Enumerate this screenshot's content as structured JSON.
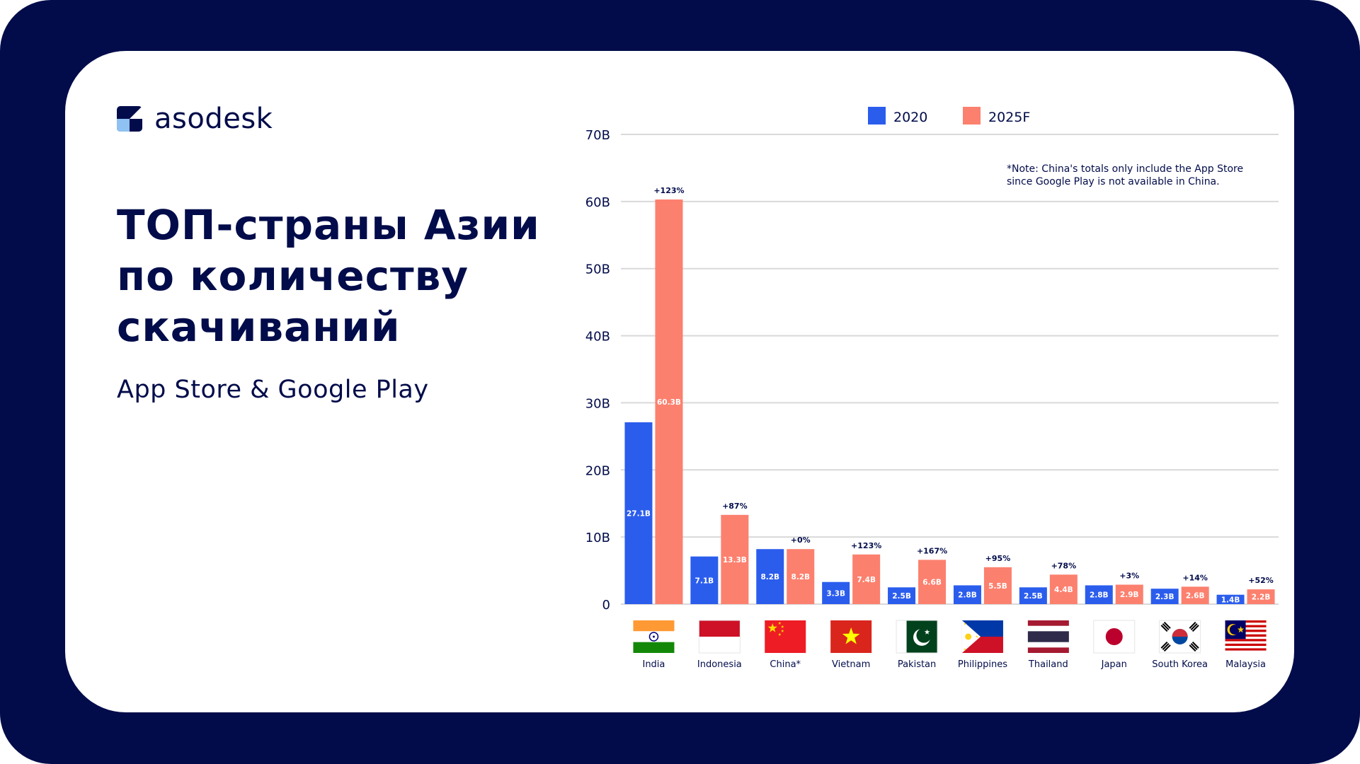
{
  "brand": {
    "name": "asodesk",
    "logo_icon": "asodesk-logo-icon"
  },
  "headline": {
    "line1": "ТОП-страны Азии",
    "line2": "по количеству",
    "line3": "скачиваний"
  },
  "subheadline": "App Store & Google Play",
  "colors": {
    "navy": "#020c4a",
    "series_2020": "#2b5ded",
    "series_2025": "#fc806e",
    "grid": "#d9d9d9"
  },
  "chart_data": {
    "type": "bar",
    "categories": [
      "India",
      "Indonesia",
      "China*",
      "Vietnam",
      "Pakistan",
      "Philippines",
      "Thailand",
      "Japan",
      "South Korea",
      "Malaysia"
    ],
    "flags": [
      "india-flag-icon",
      "indonesia-flag-icon",
      "china-flag-icon",
      "vietnam-flag-icon",
      "pakistan-flag-icon",
      "philippines-flag-icon",
      "thailand-flag-icon",
      "japan-flag-icon",
      "south-korea-flag-icon",
      "malaysia-flag-icon"
    ],
    "series": [
      {
        "name": "2020",
        "values": [
          27.1,
          7.1,
          8.2,
          3.3,
          2.5,
          2.8,
          2.5,
          2.8,
          2.3,
          1.4
        ],
        "labels": [
          "27.1B",
          "7.1B",
          "8.2B",
          "3.3B",
          "2.5B",
          "2.8B",
          "2.5B",
          "2.8B",
          "2.3B",
          "1.4B"
        ]
      },
      {
        "name": "2025F",
        "values": [
          60.3,
          13.3,
          8.2,
          7.4,
          6.6,
          5.5,
          4.4,
          2.9,
          2.6,
          2.2
        ],
        "labels": [
          "60.3B",
          "13.3B",
          "8.2B",
          "7.4B",
          "6.6B",
          "5.5B",
          "4.4B",
          "2.9B",
          "2.6B",
          "2.2B"
        ]
      }
    ],
    "growth_labels": [
      "+123%",
      "+87%",
      "+0%",
      "+123%",
      "+167%",
      "+95%",
      "+78%",
      "+3%",
      "+14%",
      "+52%"
    ],
    "yticks": [
      0,
      10,
      20,
      30,
      40,
      50,
      60,
      70
    ],
    "ytick_labels": [
      "0",
      "10B",
      "20B",
      "30B",
      "40B",
      "50B",
      "60B",
      "70B"
    ],
    "ylim": [
      0,
      70
    ],
    "grid": true,
    "legend_position": "top",
    "note": [
      "*Note: China's totals only include the App Store",
      "since Google Play is not available in China."
    ],
    "title": "",
    "xlabel": "",
    "ylabel": ""
  }
}
